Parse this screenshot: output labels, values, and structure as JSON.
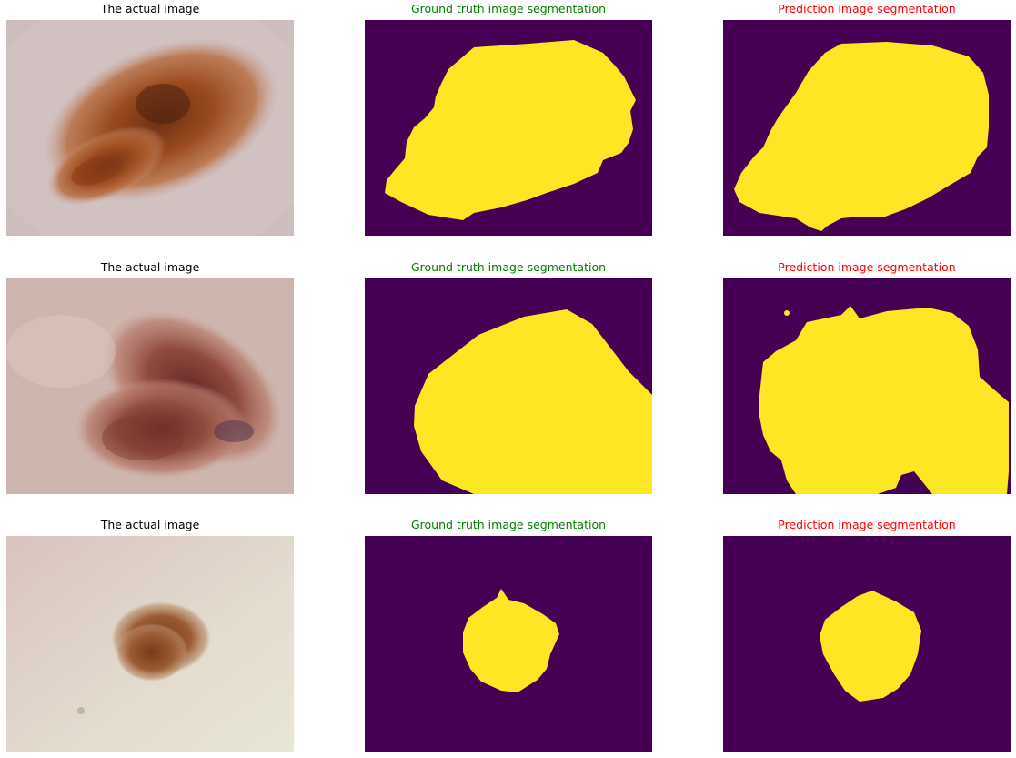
{
  "colors": {
    "actual_title": "#000000",
    "ground_truth_title": "#008000",
    "prediction_title": "#ff0000",
    "mask_background": "#440154",
    "mask_foreground": "#fde725"
  },
  "rows": [
    {
      "actual": {
        "title": "The actual image"
      },
      "ground_truth": {
        "title": "Ground truth image segmentation"
      },
      "prediction": {
        "title": "Prediction image segmentation"
      }
    },
    {
      "actual": {
        "title": "The actual image"
      },
      "ground_truth": {
        "title": "Ground truth image segmentation"
      },
      "prediction": {
        "title": "Prediction image segmentation"
      }
    },
    {
      "actual": {
        "title": "The actual image"
      },
      "ground_truth": {
        "title": "Ground truth image segmentation"
      },
      "prediction": {
        "title": "Prediction image segmentation"
      }
    }
  ]
}
